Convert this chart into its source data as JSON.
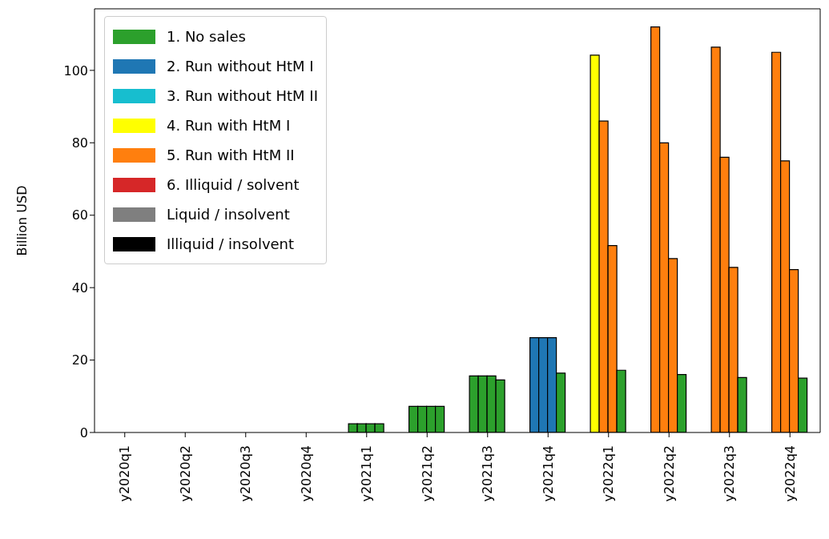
{
  "chart_data": {
    "type": "bar",
    "ylabel": "Billion USD",
    "categories": [
      "y2020q1",
      "y2020q2",
      "y2020q3",
      "y2020q4",
      "y2021q1",
      "y2021q2",
      "y2021q3",
      "y2021q4",
      "y2022q1",
      "y2022q2",
      "y2022q3",
      "y2022q4"
    ],
    "series": [
      {
        "color": "#2ca02c",
        "values": [
          0,
          0,
          0,
          0,
          2.4,
          7.2,
          15.6,
          26.2,
          104.2,
          112,
          106.4,
          105
        ],
        "colors": [
          "#2ca02c",
          "#2ca02c",
          "#2ca02c",
          "#2ca02c",
          "#2ca02c",
          "#2ca02c",
          "#2ca02c",
          "#1f77b4",
          "#ffff00",
          "#ff7f0e",
          "#ff7f0e",
          "#ff7f0e"
        ]
      },
      {
        "color": "#2ca02c",
        "values": [
          0,
          0,
          0,
          0,
          2.4,
          7.2,
          15.6,
          26.2,
          86,
          80,
          76,
          75
        ],
        "colors": [
          "#2ca02c",
          "#2ca02c",
          "#2ca02c",
          "#2ca02c",
          "#2ca02c",
          "#2ca02c",
          "#2ca02c",
          "#1f77b4",
          "#ff7f0e",
          "#ff7f0e",
          "#ff7f0e",
          "#ff7f0e"
        ]
      },
      {
        "color": "#2ca02c",
        "values": [
          0,
          0,
          0,
          0,
          2.4,
          7.2,
          15.6,
          26.2,
          51.6,
          48,
          45.6,
          45
        ],
        "colors": [
          "#2ca02c",
          "#2ca02c",
          "#2ca02c",
          "#2ca02c",
          "#2ca02c",
          "#2ca02c",
          "#2ca02c",
          "#1f77b4",
          "#ff7f0e",
          "#ff7f0e",
          "#ff7f0e",
          "#ff7f0e"
        ]
      },
      {
        "color": "#2ca02c",
        "values": [
          0,
          0,
          0,
          0,
          2.4,
          7.2,
          14.5,
          16.4,
          17.2,
          16,
          15.2,
          15
        ]
      },
      {
        "name": "1. No sales",
        "color": "#2ca02c",
        "values": [
          null,
          null,
          null,
          null,
          null,
          null,
          null,
          null,
          null,
          null,
          null,
          null
        ]
      },
      {
        "name": "2. Run without HtM I",
        "color": "#1f77b4",
        "values": [
          null,
          null,
          null,
          null,
          null,
          null,
          null,
          null,
          null,
          null,
          null,
          null
        ]
      },
      {
        "name": "3. Run without HtM II",
        "color": "#17becf",
        "values": [
          null,
          null,
          null,
          null,
          null,
          null,
          null,
          null,
          null,
          null,
          null,
          null
        ]
      },
      {
        "name": "4. Run with HtM I",
        "color": "#ffff00",
        "values": [
          null,
          null,
          null,
          null,
          null,
          null,
          null,
          null,
          null,
          null,
          null,
          null
        ]
      },
      {
        "name": "5. Run with HtM II",
        "color": "#ff7f0e",
        "values": [
          null,
          null,
          null,
          null,
          null,
          null,
          null,
          null,
          null,
          null,
          null,
          null
        ]
      },
      {
        "name": "6. Illiquid / solvent",
        "color": "#d62728",
        "values": [
          null,
          null,
          null,
          null,
          null,
          null,
          null,
          null,
          null,
          null,
          null,
          null
        ]
      },
      {
        "name": "Liquid / insolvent",
        "color": "#7f7f7f",
        "values": [
          null,
          null,
          null,
          null,
          null,
          null,
          null,
          null,
          null,
          null,
          null,
          null
        ]
      },
      {
        "name": "Illiquid / insolvent",
        "color": "#000000",
        "values": [
          null,
          null,
          null,
          null,
          null,
          null,
          null,
          null,
          null,
          null,
          null,
          null
        ]
      }
    ],
    "ylim": [
      0,
      117
    ],
    "yticks": [
      0,
      20,
      40,
      60,
      80,
      100
    ],
    "legend": "top left"
  }
}
